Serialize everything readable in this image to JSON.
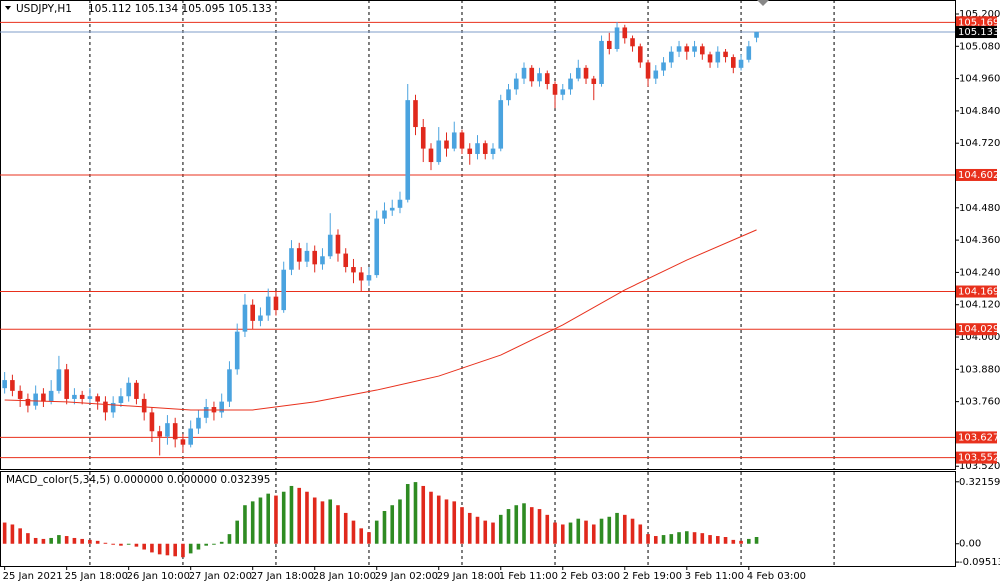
{
  "chart_data": [
    {
      "type": "candlestick",
      "title": "USDJPY,H1",
      "subtitle": "105.112 105.134 105.095 105.133",
      "xlim": [
        -0.6,
        122.6
      ],
      "xticks": [
        {
          "value": 0,
          "label": "25 Jan 2021"
        },
        {
          "value": 8,
          "label": "25 Jan 18:00"
        },
        {
          "value": 16,
          "label": "26 Jan 10:00"
        },
        {
          "value": 24,
          "label": "27 Jan 02:00"
        },
        {
          "value": 32,
          "label": "27 Jan 18:00"
        },
        {
          "value": 40,
          "label": "28 Jan 10:00"
        },
        {
          "value": 48,
          "label": "29 Jan 02:00"
        },
        {
          "value": 56,
          "label": "29 Jan 18:00"
        },
        {
          "value": 64,
          "label": "1 Feb 11:00"
        },
        {
          "value": 72,
          "label": "2 Feb 03:00"
        },
        {
          "value": 80,
          "label": "2 Feb 19:00"
        },
        {
          "value": 88,
          "label": "3 Feb 11:00"
        },
        {
          "value": 96,
          "label": "4 Feb 03:00"
        }
      ],
      "xgrid": [
        11,
        23,
        35,
        47,
        59,
        71,
        83,
        95,
        107
      ],
      "ylim": [
        103.506,
        105.252
      ],
      "yticks": [
        {
          "value": 105.2,
          "label": "105.200"
        },
        {
          "value": 105.08,
          "label": "105.080"
        },
        {
          "value": 104.96,
          "label": "104.960"
        },
        {
          "value": 104.84,
          "label": "104.840"
        },
        {
          "value": 104.72,
          "label": "104.720"
        },
        {
          "value": 104.48,
          "label": "104.480"
        },
        {
          "value": 104.36,
          "label": "104.360"
        },
        {
          "value": 104.24,
          "label": "104.240"
        },
        {
          "value": 104.12,
          "label": "104.120"
        },
        {
          "value": 104.0,
          "label": "104.000"
        },
        {
          "value": 103.88,
          "label": "103.880"
        },
        {
          "value": 103.76,
          "label": "103.760"
        },
        {
          "value": 103.52,
          "label": "103.520"
        }
      ],
      "up_color": "#4aa3df",
      "down_color": "#e0281c",
      "open": [
        103.81,
        103.84,
        103.8,
        103.77,
        103.745,
        103.79,
        103.76,
        103.8,
        103.88,
        103.77,
        103.785,
        103.77,
        103.78,
        103.76,
        103.72,
        103.755,
        103.78,
        103.83,
        103.77,
        103.72,
        103.65,
        103.63,
        103.68,
        103.62,
        103.6,
        103.66,
        103.7,
        103.74,
        103.72,
        103.76,
        103.88,
        104.02,
        104.12,
        104.06,
        104.08,
        104.15,
        104.1,
        104.25,
        104.33,
        104.28,
        104.32,
        104.27,
        104.3,
        104.38,
        104.31,
        104.26,
        104.24,
        104.21,
        104.23,
        104.44,
        104.47,
        104.48,
        104.51,
        104.88,
        104.78,
        104.7,
        104.65,
        104.73,
        104.7,
        104.76,
        104.7,
        104.68,
        104.72,
        104.68,
        104.7,
        104.88,
        104.92,
        104.96,
        105.0,
        104.95,
        104.98,
        104.94,
        104.9,
        104.92,
        104.96,
        105.0,
        104.96,
        104.94,
        105.1,
        105.07,
        105.15,
        105.11,
        105.08,
        105.02,
        104.96,
        104.99,
        105.02,
        105.06,
        105.08,
        105.06,
        105.08,
        105.05,
        105.02,
        105.06,
        105.04,
        105.0,
        105.03,
        105.112
      ],
      "high": [
        103.87,
        103.86,
        103.82,
        103.79,
        103.82,
        103.81,
        103.84,
        103.93,
        103.9,
        103.81,
        103.8,
        103.81,
        103.79,
        103.78,
        103.78,
        103.81,
        103.85,
        103.84,
        103.79,
        103.74,
        103.67,
        103.71,
        103.7,
        103.64,
        103.69,
        103.73,
        103.77,
        103.76,
        103.79,
        103.91,
        104.05,
        104.16,
        104.14,
        104.11,
        104.18,
        104.17,
        104.28,
        104.36,
        104.35,
        104.35,
        104.34,
        104.33,
        104.46,
        104.4,
        104.33,
        104.29,
        104.26,
        104.26,
        104.47,
        104.5,
        104.51,
        104.54,
        104.94,
        104.9,
        104.81,
        104.72,
        104.78,
        104.76,
        104.8,
        104.77,
        104.72,
        104.75,
        104.73,
        104.72,
        104.9,
        104.94,
        104.98,
        105.02,
        105.01,
        105.0,
        104.99,
        104.95,
        104.94,
        104.98,
        105.03,
        105.01,
        104.97,
        105.12,
        105.13,
        105.17,
        105.16,
        105.12,
        105.09,
        105.03,
        105.01,
        105.04,
        105.08,
        105.1,
        105.09,
        105.1,
        105.09,
        105.06,
        105.08,
        105.07,
        105.05,
        105.05,
        105.1,
        105.134
      ],
      "low": [
        103.79,
        103.78,
        103.74,
        103.72,
        103.73,
        103.74,
        103.75,
        103.79,
        103.75,
        103.75,
        103.75,
        103.75,
        103.73,
        103.69,
        103.7,
        103.74,
        103.76,
        103.75,
        103.69,
        103.61,
        103.56,
        103.6,
        103.59,
        103.57,
        103.59,
        103.64,
        103.68,
        103.69,
        103.7,
        103.74,
        103.86,
        104.0,
        104.03,
        104.04,
        104.06,
        104.08,
        104.09,
        104.23,
        104.25,
        104.26,
        104.24,
        104.25,
        104.29,
        104.28,
        104.24,
        104.2,
        104.17,
        104.19,
        104.22,
        104.42,
        104.45,
        104.46,
        104.5,
        104.75,
        104.65,
        104.62,
        104.64,
        104.67,
        104.69,
        104.68,
        104.64,
        104.66,
        104.66,
        104.66,
        104.69,
        104.86,
        104.9,
        104.94,
        104.93,
        104.93,
        104.92,
        104.85,
        104.88,
        104.9,
        104.95,
        104.94,
        104.88,
        104.93,
        105.05,
        105.06,
        105.09,
        105.06,
        105.0,
        104.93,
        104.94,
        104.97,
        105.0,
        105.04,
        105.03,
        105.04,
        105.03,
        105.0,
        105.0,
        105.02,
        104.98,
        104.99,
        105.02,
        105.095
      ],
      "close": [
        103.84,
        103.8,
        103.77,
        103.745,
        103.79,
        103.76,
        103.8,
        103.88,
        103.77,
        103.785,
        103.77,
        103.78,
        103.76,
        103.72,
        103.755,
        103.78,
        103.83,
        103.77,
        103.72,
        103.65,
        103.63,
        103.68,
        103.62,
        103.6,
        103.66,
        103.7,
        103.74,
        103.72,
        103.76,
        103.88,
        104.02,
        104.12,
        104.06,
        104.08,
        104.15,
        104.1,
        104.25,
        104.33,
        104.28,
        104.32,
        104.27,
        104.3,
        104.38,
        104.31,
        104.26,
        104.24,
        104.21,
        104.23,
        104.44,
        104.47,
        104.48,
        104.51,
        104.88,
        104.78,
        104.7,
        104.65,
        104.73,
        104.7,
        104.76,
        104.7,
        104.68,
        104.72,
        104.68,
        104.7,
        104.88,
        104.92,
        104.96,
        105.0,
        104.95,
        104.98,
        104.94,
        104.9,
        104.92,
        104.96,
        105.0,
        104.96,
        104.94,
        105.1,
        105.07,
        105.15,
        105.11,
        105.08,
        105.02,
        104.96,
        104.99,
        105.02,
        105.06,
        105.08,
        105.06,
        105.08,
        105.05,
        105.02,
        105.06,
        105.04,
        105.0,
        105.03,
        105.08,
        105.133
      ],
      "overlay": {
        "x": [
          0,
          8,
          16,
          24,
          32,
          40,
          48,
          56,
          64,
          72,
          80,
          88,
          97
        ],
        "values": [
          103.766,
          103.759,
          103.744,
          103.729,
          103.729,
          103.759,
          103.803,
          103.855,
          103.933,
          104.045,
          104.175,
          104.286,
          104.398
        ],
        "color": "#e8301c"
      },
      "levels": [
        105.169,
        104.602,
        104.169,
        104.029,
        103.627,
        103.552
      ],
      "level_color": "#e8301c",
      "current_price": 105.133,
      "current_color": "#7f9cc8"
    },
    {
      "type": "bar",
      "title": "MACD_color(5,34,5) 0.000000 0.000000 0.032395",
      "ylim": [
        -0.1155,
        0.3724
      ],
      "yticks": [
        0.321598,
        {
          "value": 0,
          "label": "0.00"
        },
        -0.095132
      ],
      "rise_color": "#2e8b22",
      "fall_color": "#e0281c",
      "values": [
        0.11,
        0.1,
        0.08,
        0.055,
        0.03,
        0.025,
        0.03,
        0.045,
        0.04,
        0.03,
        0.025,
        0.02,
        0.015,
        0.005,
        -0.005,
        -0.01,
        -0.005,
        -0.015,
        -0.03,
        -0.045,
        -0.055,
        -0.06,
        -0.065,
        -0.07,
        -0.05,
        -0.03,
        -0.01,
        -0.005,
        0.01,
        0.05,
        0.12,
        0.2,
        0.22,
        0.24,
        0.26,
        0.25,
        0.27,
        0.3,
        0.29,
        0.27,
        0.24,
        0.22,
        0.23,
        0.2,
        0.16,
        0.12,
        0.08,
        0.06,
        0.12,
        0.17,
        0.2,
        0.23,
        0.31,
        0.32,
        0.3,
        0.27,
        0.25,
        0.23,
        0.22,
        0.19,
        0.16,
        0.14,
        0.12,
        0.11,
        0.15,
        0.18,
        0.2,
        0.21,
        0.19,
        0.18,
        0.15,
        0.11,
        0.1,
        0.11,
        0.13,
        0.12,
        0.1,
        0.13,
        0.14,
        0.16,
        0.15,
        0.13,
        0.1,
        0.05,
        0.04,
        0.045,
        0.05,
        0.06,
        0.065,
        0.06,
        0.055,
        0.045,
        0.04,
        0.035,
        0.02,
        0.015,
        0.025,
        0.035
      ]
    }
  ]
}
